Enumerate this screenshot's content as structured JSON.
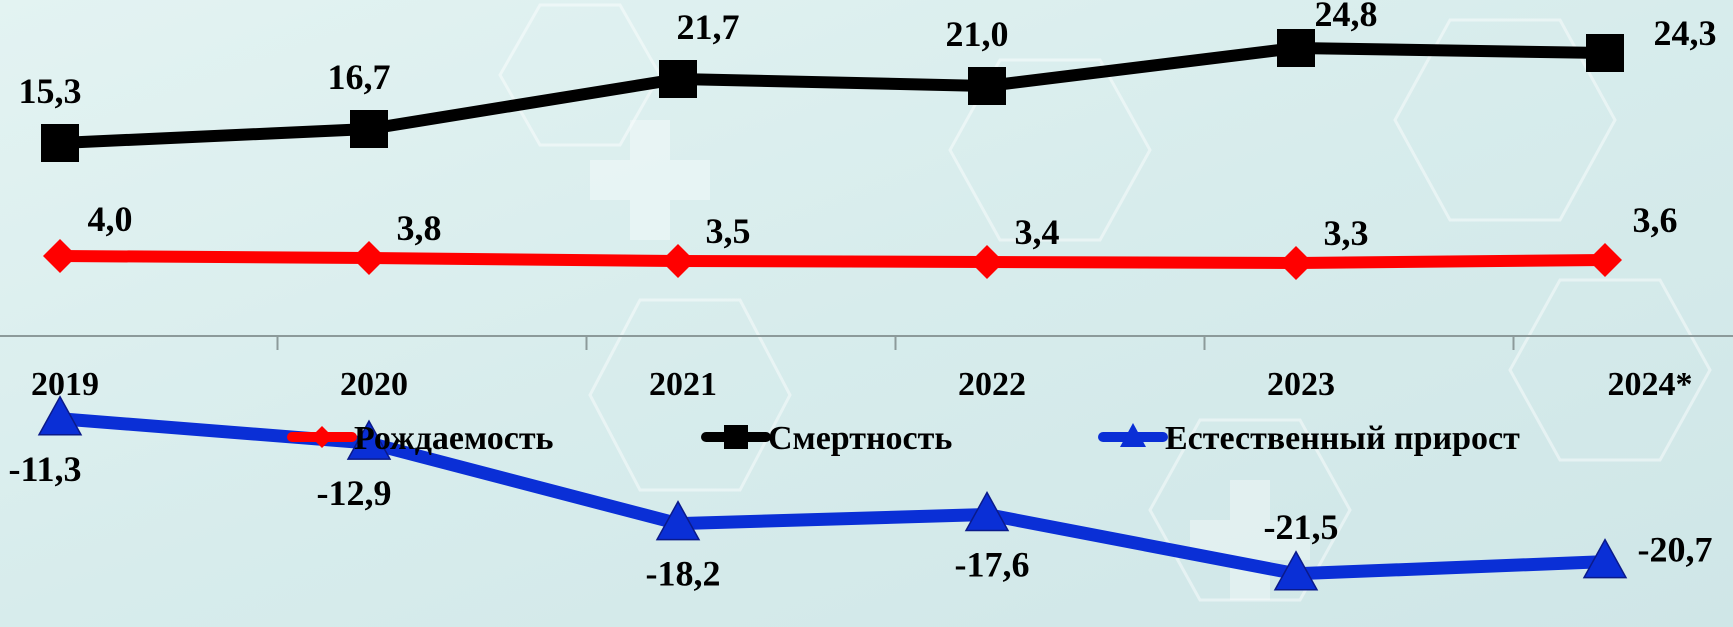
{
  "chart_data": {
    "type": "line",
    "categories": [
      "2019",
      "2020",
      "2021",
      "2022",
      "2023",
      "2024*"
    ],
    "series": [
      {
        "name": "Рождаемость",
        "values": [
          4.0,
          3.8,
          3.5,
          3.4,
          3.3,
          3.6
        ],
        "labels": [
          "4,0",
          "3,8",
          "3,5",
          "3,4",
          "3,3",
          "3,6"
        ],
        "color": "#ff0000",
        "marker": "diamond"
      },
      {
        "name": "Смертность",
        "values": [
          15.3,
          16.7,
          21.7,
          21.0,
          24.8,
          24.3
        ],
        "labels": [
          "15,3",
          "16,7",
          "21,7",
          "21,0",
          "24,8",
          "24,3"
        ],
        "color": "#000000",
        "marker": "square"
      },
      {
        "name": "Естественный прирост",
        "values": [
          -11.3,
          -12.9,
          -18.2,
          -17.6,
          -21.5,
          -20.7
        ],
        "labels": [
          "-11,3",
          "-12,9",
          "-18,2",
          "-17,6",
          "-21,5",
          "-20,7"
        ],
        "color": "#0a2fd6",
        "marker": "triangle"
      }
    ],
    "title": "",
    "xlabel": "",
    "ylabel": "",
    "ylim": [
      -25,
      28
    ],
    "grid": false,
    "legend_position": "middle",
    "background_color": "#dcefee",
    "axis_color": "#8c9a9a"
  }
}
